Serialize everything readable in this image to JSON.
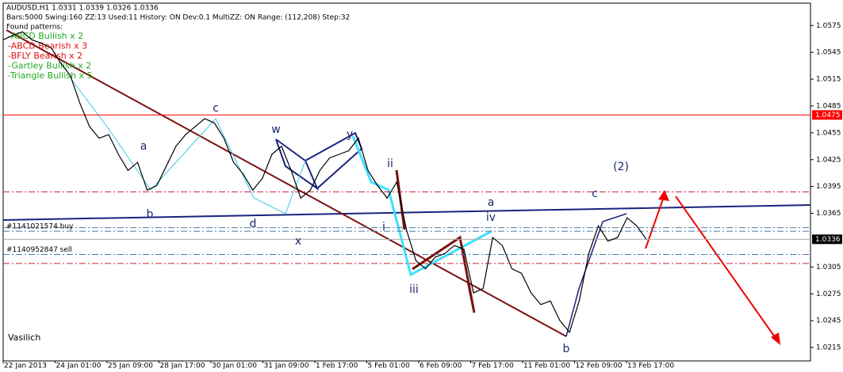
{
  "chart_data": {
    "type": "line",
    "title": "AUDUSD,H1  1.0331 1.0339 1.0326 1.0336",
    "subtitle": "Bars:5000  Swing:160  ZZ:13  Used:11  History: ON Dev:0.1  MultiZZ: ON  Range: (112,208)  Step:32",
    "patterns_heading": "Found patterns:",
    "patterns": [
      {
        "text": "-ABCD Bullish x 2",
        "color": "#22aa22"
      },
      {
        "text": "-ABCD Bearish x 3",
        "color": "#dd1111"
      },
      {
        "text": "-BFLY Bearish x 2",
        "color": "#dd1111"
      },
      {
        "text": "-Gartley Bullish x 2",
        "color": "#22aa22"
      },
      {
        "text": "-Triangle Bullish x 5",
        "color": "#22aa22"
      }
    ],
    "color": "#000000",
    "values": [
      1.0559,
      1.0564,
      1.0568,
      1.0559,
      1.0555,
      1.055,
      1.0533,
      1.0519,
      1.0488,
      1.0462,
      1.0449,
      1.0453,
      1.0431,
      1.0413,
      1.0422,
      1.0391,
      1.0396,
      1.0418,
      1.044,
      1.0453,
      1.0462,
      1.0471,
      1.0466,
      1.0449,
      1.0422,
      1.0409,
      1.0391,
      1.0404,
      1.0431,
      1.044,
      1.0413,
      1.0382,
      1.0391,
      1.0413,
      1.0427,
      1.0431,
      1.0435,
      1.0449,
      1.0413,
      1.0396,
      1.0382,
      1.04,
      1.0347,
      1.0312,
      1.0303,
      1.0316,
      1.032,
      1.0329,
      1.0325,
      1.0276,
      1.0281,
      1.0338,
      1.0329,
      1.0303,
      1.0298,
      1.0276,
      1.0263,
      1.0267,
      1.0245,
      1.0232,
      1.0267,
      1.032,
      1.0351,
      1.0334,
      1.0338,
      1.036,
      1.0351,
      1.0336
    ],
    "x_labels": [
      "22 Jan 2013",
      "24 Jan 01:00",
      "25 Jan 09:00",
      "28 Jan 17:00",
      "30 Jan 01:00",
      "31 Jan 09:00",
      "1 Feb 17:00",
      "5 Feb 01:00",
      "6 Feb 09:00",
      "7 Feb 17:00",
      "11 Feb 01:00",
      "12 Feb 09:00",
      "13 Feb 17:00"
    ],
    "ylim": [
      1.02,
      1.06
    ],
    "yticks": [
      1.0215,
      1.0245,
      1.0275,
      1.0305,
      1.0365,
      1.0395,
      1.0425,
      1.0455,
      1.0485,
      1.0515,
      1.0545,
      1.0575
    ],
    "last_price": 1.0336,
    "levels": [
      {
        "value": 1.0475,
        "color": "#ff0000",
        "style": "solid"
      },
      {
        "value": 1.0389,
        "color": "#cc2233",
        "style": "dashdot"
      },
      {
        "value": 1.0309,
        "color": "#cc2233",
        "style": "dashdot"
      },
      {
        "value": 1.0349,
        "color": "#4a7aa8",
        "style": "dashdot"
      },
      {
        "value": 1.0345,
        "color": "#4a7aa8",
        "style": "dashdot"
      },
      {
        "value": 1.0319,
        "color": "#4a7aa8",
        "style": "dashdot"
      }
    ],
    "orders": [
      "#1141021574 buy",
      "#1140952847 sell"
    ],
    "wave_labels": [
      "a",
      "b",
      "c",
      "d",
      "w",
      "x",
      "y",
      "ii",
      "i",
      "iii",
      "iv",
      "a",
      "c",
      "(2)",
      "b"
    ],
    "author": "Vasilich"
  }
}
